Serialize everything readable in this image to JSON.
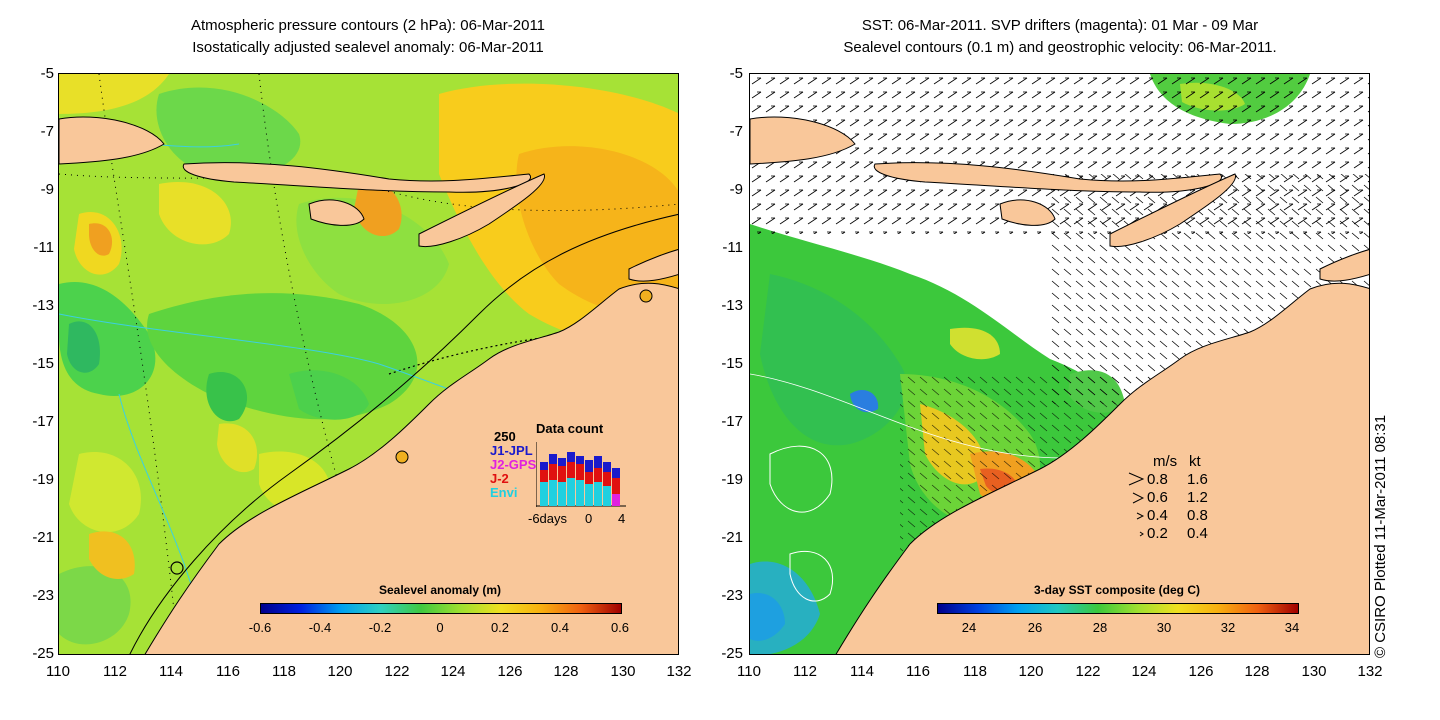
{
  "left_panel": {
    "title_line1": "Atmospheric pressure contours (2 hPa): 06-Mar-2011",
    "title_line2": "Isostatically adjusted sealevel anomaly: 06-Mar-2011",
    "colorbar": {
      "title": "Sealevel anomaly (m)",
      "ticks": [
        "-0.6",
        "-0.4",
        "-0.2",
        "0",
        "0.2",
        "0.4",
        "0.6"
      ]
    },
    "data_count": {
      "title": "Data count",
      "ymax_label": "250",
      "xticks": [
        "-6days",
        "0",
        "4"
      ],
      "legend": [
        {
          "label": "J1-JPL",
          "color": "#1a1acc"
        },
        {
          "label": "J2-GPS",
          "color": "#e020e0"
        },
        {
          "label": "J-2",
          "color": "#e01010"
        },
        {
          "label": "Envi",
          "color": "#20d0e0"
        }
      ]
    }
  },
  "right_panel": {
    "title_line1": "SST: 06-Mar-2011. SVP drifters (magenta): 01 Mar - 09 Mar",
    "title_line2": "Sealevel contours (0.1 m) and geostrophic velocity: 06-Mar-2011.",
    "colorbar": {
      "title": "3-day SST composite (deg C)",
      "ticks": [
        "24",
        "26",
        "28",
        "30",
        "32",
        "34"
      ]
    },
    "velocity_legend": {
      "header_ms": "m/s",
      "header_kt": "kt",
      "rows": [
        {
          "ms": "0.8",
          "kt": "1.6"
        },
        {
          "ms": "0.6",
          "kt": "1.2"
        },
        {
          "ms": "0.4",
          "kt": "0.8"
        },
        {
          "ms": "0.2",
          "kt": "0.4"
        }
      ]
    }
  },
  "axes": {
    "y_ticks": [
      "-5",
      "-7",
      "-9",
      "-11",
      "-13",
      "-15",
      "-17",
      "-19",
      "-21",
      "-23",
      "-25"
    ],
    "x_ticks": [
      "110",
      "112",
      "114",
      "116",
      "118",
      "120",
      "122",
      "124",
      "126",
      "128",
      "130",
      "132"
    ]
  },
  "copyright": "© CSIRO Plotted 11-Mar-2011 08:31",
  "colors": {
    "land": "#f9c79a",
    "ocean_anomaly": "#a8e63c",
    "sst_ocean": "#3cc83c",
    "cloud": "#ffffff"
  }
}
